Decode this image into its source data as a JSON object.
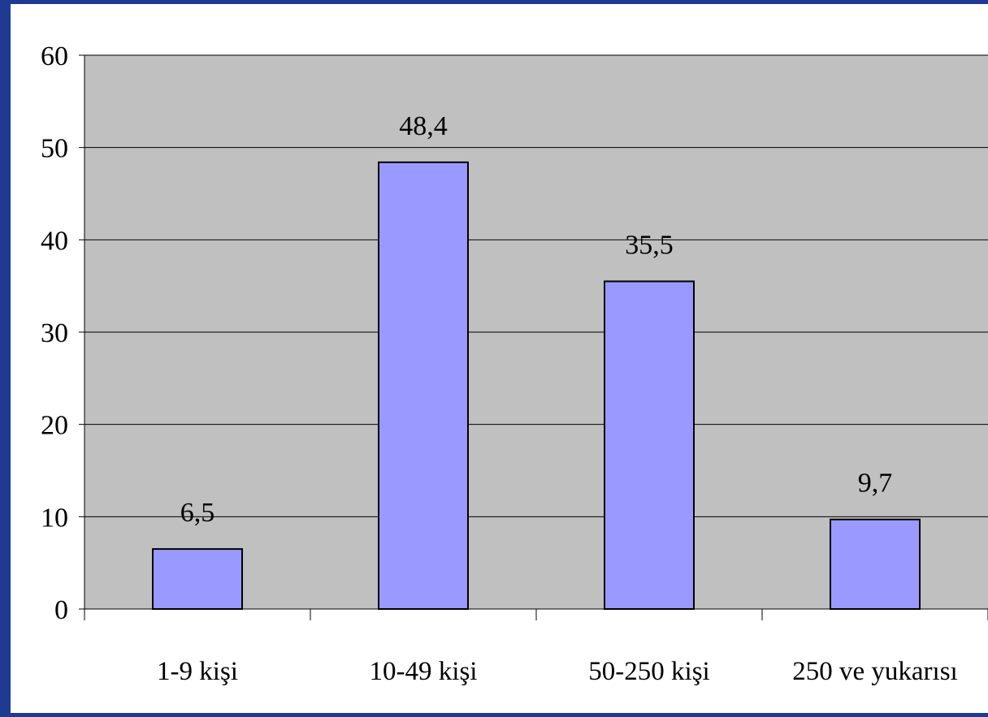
{
  "chart_data": {
    "type": "bar",
    "categories": [
      "1-9 kişi",
      "10-49 kişi",
      "50-250 kişi",
      "250 ve yukarısı"
    ],
    "values": [
      6.5,
      48.4,
      35.5,
      9.7
    ],
    "data_labels": [
      "6,5",
      "48,4",
      "35,5",
      "9,7"
    ],
    "title": "",
    "xlabel": "",
    "ylabel": "",
    "ylim": [
      0,
      60
    ],
    "yticks": [
      0,
      10,
      20,
      30,
      40,
      50,
      60
    ],
    "grid": true,
    "legend": "none",
    "colors": {
      "bar_fill": "#9999ff",
      "bar_stroke": "#000000",
      "plot_background": "#c0c0c0",
      "gridline": "#000000",
      "frame_border": "#1f3a93"
    }
  }
}
